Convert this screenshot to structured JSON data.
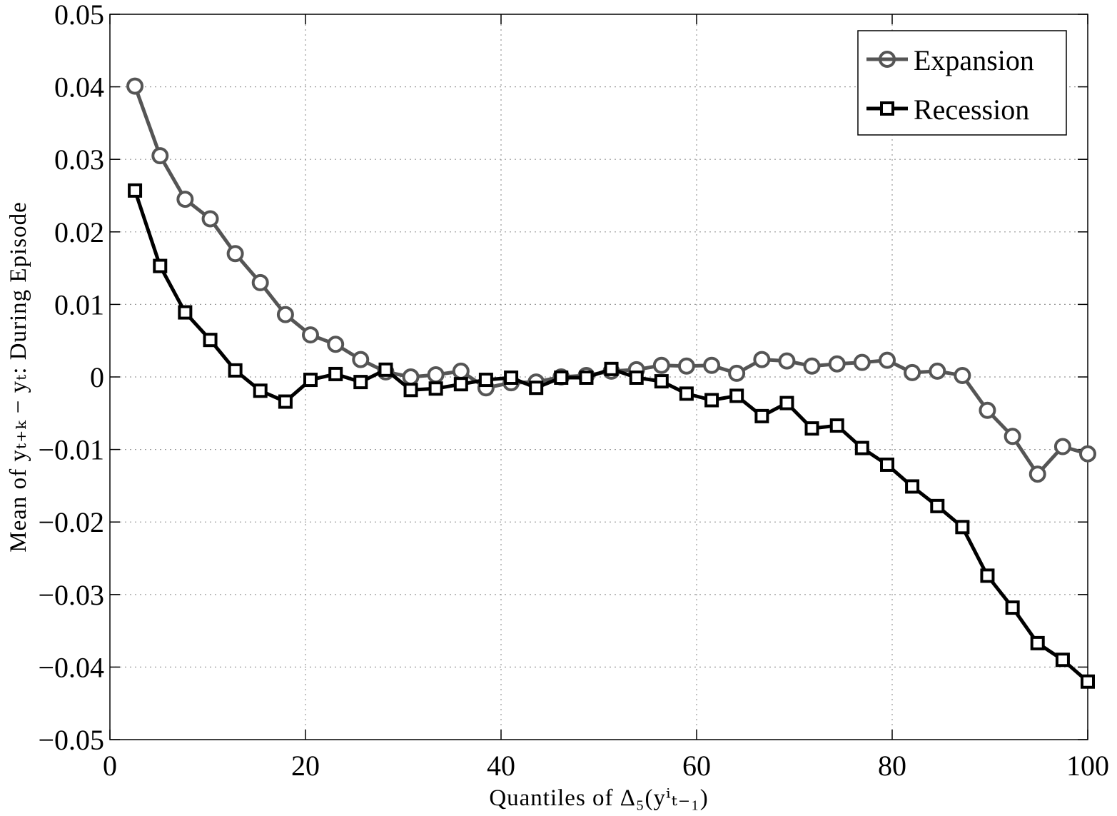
{
  "chart_data": {
    "type": "line",
    "title": "",
    "xlabel": "Quantiles of Δ₅(yⁱₜ₋₁)",
    "ylabel": "Mean of yₜ₊ₖ − yₜ: During Episode",
    "xlim": [
      0,
      100
    ],
    "ylim": [
      -0.05,
      0.05
    ],
    "grid": true,
    "legend_position": "top-right",
    "x_ticks": [
      "0",
      "20",
      "40",
      "60",
      "80",
      "100"
    ],
    "y_ticks": [
      "−0.05",
      "−0.04",
      "−0.03",
      "−0.02",
      "−0.01",
      "0",
      "0.01",
      "0.02",
      "0.03",
      "0.04",
      "0.05"
    ],
    "x": [
      2.56,
      5.13,
      7.69,
      10.26,
      12.82,
      15.38,
      17.95,
      20.51,
      23.08,
      25.64,
      28.21,
      30.77,
      33.33,
      35.9,
      38.46,
      41.03,
      43.59,
      46.15,
      48.72,
      51.28,
      53.85,
      56.41,
      58.97,
      61.54,
      64.1,
      66.67,
      69.23,
      71.79,
      74.36,
      76.92,
      79.49,
      82.05,
      84.62,
      87.18,
      89.74,
      92.31,
      94.87,
      97.44,
      100.0
    ],
    "series": [
      {
        "name": "Expansion",
        "color": "#555555",
        "marker": "circle",
        "values": [
          0.0401,
          0.0305,
          0.0245,
          0.0218,
          0.017,
          0.013,
          0.0086,
          0.0058,
          0.0045,
          0.0024,
          0.0007,
          0.0,
          0.0003,
          0.0008,
          -0.0015,
          -0.0008,
          -0.0007,
          0.0,
          0.0002,
          0.0008,
          0.001,
          0.0016,
          0.0015,
          0.0016,
          0.0005,
          0.0024,
          0.0022,
          0.0015,
          0.0018,
          0.002,
          0.0023,
          0.0006,
          0.0008,
          0.0002,
          -0.0046,
          -0.0082,
          -0.0134,
          -0.0096,
          -0.0106
        ]
      },
      {
        "name": "Recession",
        "color": "#000000",
        "marker": "square",
        "values": [
          0.0257,
          0.0153,
          0.0089,
          0.0051,
          0.0009,
          -0.0019,
          -0.0034,
          -0.0004,
          0.0004,
          -0.0007,
          0.001,
          -0.0018,
          -0.0016,
          -0.001,
          -0.0004,
          -0.0001,
          -0.0015,
          -0.0001,
          -0.0001,
          0.0011,
          -0.0001,
          -0.0006,
          -0.0023,
          -0.0032,
          -0.0026,
          -0.0054,
          -0.0036,
          -0.0071,
          -0.0067,
          -0.0098,
          -0.0121,
          -0.0151,
          -0.0178,
          -0.0207,
          -0.0274,
          -0.0318,
          -0.0367,
          -0.039,
          -0.042
        ]
      }
    ]
  }
}
